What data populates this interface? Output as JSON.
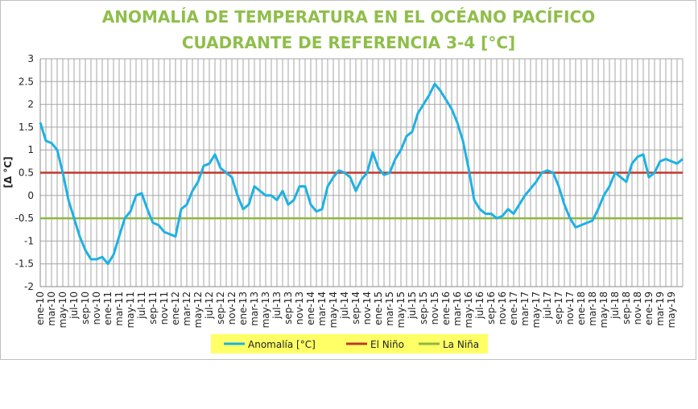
{
  "chart_data": {
    "type": "line",
    "title": [
      "ANOMALÍA DE TEMPERATURA EN EL OCÉANO PACÍFICO",
      "CUADRANTE DE REFERENCIA 3-4 [°C]"
    ],
    "ylabel": "[Δ °C]",
    "categories": [
      "ene-10",
      null,
      "mar-10",
      null,
      "may-10",
      null,
      "jul-10",
      null,
      "sep-10",
      null,
      "nov-10",
      null,
      "ene-11",
      null,
      "mar-11",
      null,
      "may-11",
      null,
      "jul-11",
      null,
      "sep-11",
      null,
      "nov-11",
      null,
      "ene-12",
      null,
      "mar-12",
      null,
      "may-12",
      null,
      "jul-12",
      null,
      "sep-12",
      null,
      "nov-12",
      null,
      "ene-13",
      null,
      "mar-13",
      null,
      "may-13",
      null,
      "jul-13",
      null,
      "sep-13",
      null,
      "nov-13",
      null,
      "ene-14",
      null,
      "mar-14",
      null,
      "may-14",
      null,
      "jul-14",
      null,
      "sep-14",
      null,
      "nov-14",
      null,
      "ene-15",
      null,
      "mar-15",
      null,
      "may-15",
      null,
      "jul-15",
      null,
      "sep-15",
      null,
      "nov-15",
      null,
      "ene-16",
      null,
      "mar-16",
      null,
      "may-16",
      null,
      "jul-16",
      null,
      "sep-16",
      null,
      "nov-16",
      null,
      "ene-17",
      null,
      "mar-17",
      null,
      "may-17",
      null,
      "jul-17",
      null,
      "sep-17",
      null,
      "nov-17",
      null,
      "ene-18",
      null,
      "mar-18",
      null,
      "may-18",
      null,
      "jul-18",
      null,
      "sep-18",
      null,
      "nov-18",
      null,
      "ene-19",
      null,
      "mar-19",
      null,
      "may-19",
      null,
      null
    ],
    "series": [
      {
        "name": "Anomalía [°C]",
        "color": "#1eb1e4",
        "values": [
          1.6,
          1.2,
          1.15,
          1.0,
          0.5,
          -0.1,
          -0.5,
          -0.9,
          -1.2,
          -1.4,
          -1.4,
          -1.35,
          -1.5,
          -1.3,
          -0.9,
          -0.5,
          -0.35,
          0.0,
          0.05,
          -0.3,
          -0.6,
          -0.65,
          -0.8,
          -0.85,
          -0.9,
          -0.3,
          -0.2,
          0.1,
          0.3,
          0.65,
          0.7,
          0.9,
          0.6,
          0.5,
          0.4,
          0.0,
          -0.3,
          -0.2,
          0.2,
          0.1,
          0.0,
          0.0,
          -0.1,
          0.1,
          -0.2,
          -0.1,
          0.2,
          0.2,
          -0.2,
          -0.35,
          -0.3,
          0.2,
          0.4,
          0.55,
          0.5,
          0.4,
          0.1,
          0.35,
          0.5,
          0.95,
          0.6,
          0.45,
          0.5,
          0.8,
          1.0,
          1.3,
          1.4,
          1.8,
          2.0,
          2.2,
          2.45,
          2.3,
          2.1,
          1.9,
          1.6,
          1.2,
          0.6,
          -0.1,
          -0.3,
          -0.4,
          -0.4,
          -0.5,
          -0.45,
          -0.3,
          -0.4,
          -0.2,
          0.0,
          0.15,
          0.3,
          0.5,
          0.55,
          0.5,
          0.2,
          -0.2,
          -0.5,
          -0.7,
          -0.65,
          -0.6,
          -0.55,
          -0.3,
          0.0,
          0.2,
          0.5,
          0.4,
          0.3,
          0.7,
          0.85,
          0.9,
          0.4,
          0.5,
          0.75,
          0.8,
          0.75,
          0.7,
          0.8
        ]
      },
      {
        "name": "El Niño",
        "color": "#c0392b",
        "values": [
          0.5,
          0.5,
          0.5,
          0.5,
          0.5,
          0.5,
          0.5,
          0.5,
          0.5,
          0.5,
          0.5,
          0.5,
          0.5,
          0.5,
          0.5,
          0.5,
          0.5,
          0.5,
          0.5,
          0.5,
          0.5,
          0.5,
          0.5,
          0.5,
          0.5,
          0.5,
          0.5,
          0.5,
          0.5,
          0.5,
          0.5,
          0.5,
          0.5,
          0.5,
          0.5,
          0.5,
          0.5,
          0.5,
          0.5,
          0.5,
          0.5,
          0.5,
          0.5,
          0.5,
          0.5,
          0.5,
          0.5,
          0.5,
          0.5,
          0.5,
          0.5,
          0.5,
          0.5,
          0.5,
          0.5,
          0.5,
          0.5,
          0.5,
          0.5,
          0.5,
          0.5,
          0.5,
          0.5,
          0.5,
          0.5,
          0.5,
          0.5,
          0.5,
          0.5,
          0.5,
          0.5,
          0.5,
          0.5,
          0.5,
          0.5,
          0.5,
          0.5,
          0.5,
          0.5,
          0.5,
          0.5,
          0.5,
          0.5,
          0.5,
          0.5,
          0.5,
          0.5,
          0.5,
          0.5,
          0.5,
          0.5,
          0.5,
          0.5,
          0.5,
          0.5,
          0.5,
          0.5,
          0.5,
          0.5,
          0.5,
          0.5,
          0.5,
          0.5,
          0.5,
          0.5,
          0.5,
          0.5,
          0.5,
          0.5,
          0.5,
          0.5,
          0.5,
          0.5,
          0.5,
          0.5
        ]
      },
      {
        "name": "La Niña",
        "color": "#8db840",
        "values": [
          -0.5,
          -0.5,
          -0.5,
          -0.5,
          -0.5,
          -0.5,
          -0.5,
          -0.5,
          -0.5,
          -0.5,
          -0.5,
          -0.5,
          -0.5,
          -0.5,
          -0.5,
          -0.5,
          -0.5,
          -0.5,
          -0.5,
          -0.5,
          -0.5,
          -0.5,
          -0.5,
          -0.5,
          -0.5,
          -0.5,
          -0.5,
          -0.5,
          -0.5,
          -0.5,
          -0.5,
          -0.5,
          -0.5,
          -0.5,
          -0.5,
          -0.5,
          -0.5,
          -0.5,
          -0.5,
          -0.5,
          -0.5,
          -0.5,
          -0.5,
          -0.5,
          -0.5,
          -0.5,
          -0.5,
          -0.5,
          -0.5,
          -0.5,
          -0.5,
          -0.5,
          -0.5,
          -0.5,
          -0.5,
          -0.5,
          -0.5,
          -0.5,
          -0.5,
          -0.5,
          -0.5,
          -0.5,
          -0.5,
          -0.5,
          -0.5,
          -0.5,
          -0.5,
          -0.5,
          -0.5,
          -0.5,
          -0.5,
          -0.5,
          -0.5,
          -0.5,
          -0.5,
          -0.5,
          -0.5,
          -0.5,
          -0.5,
          -0.5,
          -0.5,
          -0.5,
          -0.5,
          -0.5,
          -0.5,
          -0.5,
          -0.5,
          -0.5,
          -0.5,
          -0.5,
          -0.5,
          -0.5,
          -0.5,
          -0.5,
          -0.5,
          -0.5,
          -0.5,
          -0.5,
          -0.5,
          -0.5,
          -0.5,
          -0.5,
          -0.5,
          -0.5,
          -0.5,
          -0.5,
          -0.5,
          -0.5,
          -0.5,
          -0.5,
          -0.5,
          -0.5,
          -0.5,
          -0.5,
          -0.5
        ]
      }
    ],
    "ylim": [
      -2,
      3
    ],
    "yticks": [
      3,
      2.5,
      2,
      1.5,
      1,
      0.5,
      0,
      -0.5,
      -1,
      -1.5,
      -2
    ],
    "grid": true,
    "legend": "bottom"
  }
}
